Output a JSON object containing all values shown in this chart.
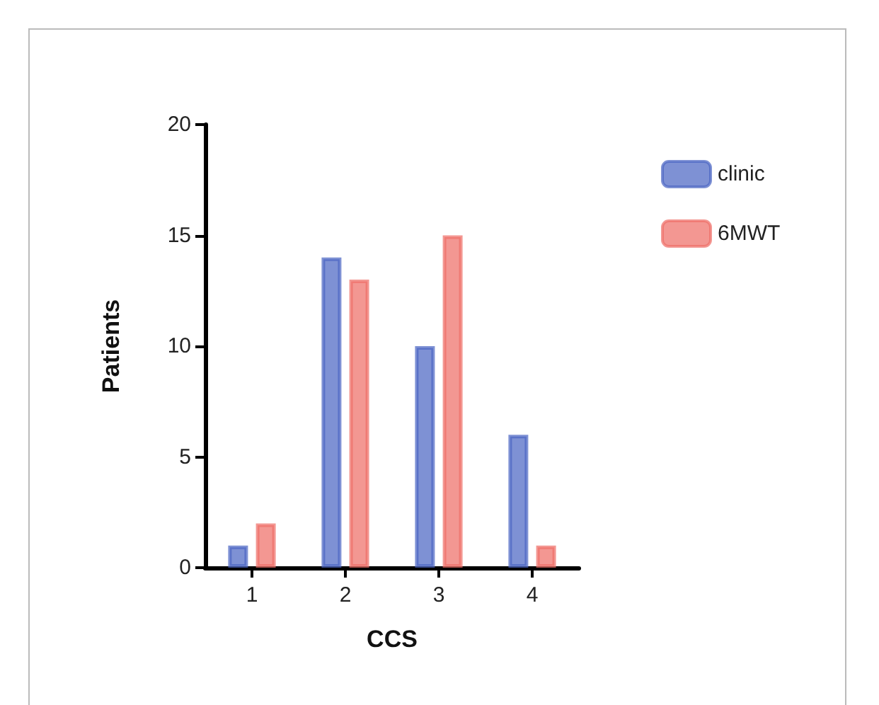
{
  "chart_data": {
    "type": "bar",
    "xlabel": "CCS",
    "ylabel": "Patients",
    "categories": [
      "1",
      "2",
      "3",
      "4"
    ],
    "series": [
      {
        "name": "clinic",
        "color": "#4c66c4",
        "values": [
          1,
          14,
          10,
          6
        ]
      },
      {
        "name": "6MWT",
        "color": "#ef6f68",
        "values": [
          2,
          13,
          15,
          1
        ]
      }
    ],
    "ylim": [
      0,
      20
    ],
    "yticks": [
      0,
      5,
      10,
      15,
      20
    ],
    "grid": false,
    "legend": "top right"
  }
}
